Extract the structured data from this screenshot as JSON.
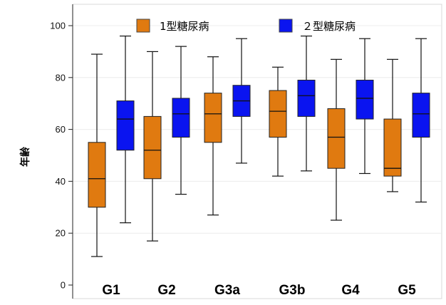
{
  "chart_data": {
    "type": "boxplot",
    "ylabel": "年齢",
    "xlabel": "",
    "ylim": [
      0,
      100
    ],
    "yticks": [
      0,
      20,
      40,
      60,
      80,
      100
    ],
    "grid": true,
    "legend_position": "top",
    "categories": [
      "G1",
      "G2",
      "G3a",
      "G3b",
      "G4",
      "G5"
    ],
    "series": [
      {
        "name": "1型糖尿病",
        "color": "#E07A10",
        "boxes": [
          {
            "min": 11,
            "q1": 30,
            "median": 41,
            "q3": 55,
            "max": 89
          },
          {
            "min": 17,
            "q1": 41,
            "median": 52,
            "q3": 65,
            "max": 90
          },
          {
            "min": 27,
            "q1": 55,
            "median": 66,
            "q3": 74,
            "max": 88
          },
          {
            "min": 42,
            "q1": 57,
            "median": 67,
            "q3": 75,
            "max": 84
          },
          {
            "min": 25,
            "q1": 45,
            "median": 57,
            "q3": 68,
            "max": 87
          },
          {
            "min": 36,
            "q1": 42,
            "median": 45,
            "q3": 64,
            "max": 87
          }
        ]
      },
      {
        "name": "２型糖尿病",
        "color": "#0A14F0",
        "boxes": [
          {
            "min": 24,
            "q1": 52,
            "median": 64,
            "q3": 71,
            "max": 96
          },
          {
            "min": 35,
            "q1": 57,
            "median": 66,
            "q3": 72,
            "max": 92
          },
          {
            "min": 47,
            "q1": 65,
            "median": 71,
            "q3": 77,
            "max": 95
          },
          {
            "min": 44,
            "q1": 65,
            "median": 73,
            "q3": 79,
            "max": 96
          },
          {
            "min": 43,
            "q1": 64,
            "median": 72,
            "q3": 79,
            "max": 95
          },
          {
            "min": 32,
            "q1": 57,
            "median": 66,
            "q3": 74,
            "max": 95
          }
        ]
      }
    ]
  }
}
